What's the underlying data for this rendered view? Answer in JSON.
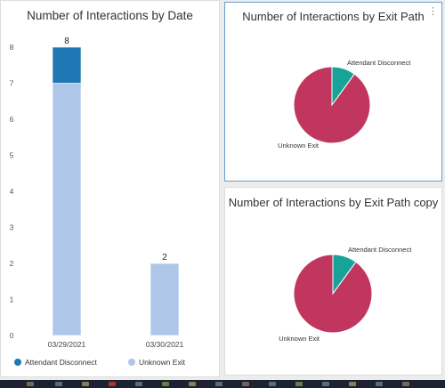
{
  "panels": {
    "bar": {
      "title": "Number of Interactions by Date"
    },
    "pie1": {
      "title": "Number of Interactions by Exit Path"
    },
    "pie2": {
      "title": "Number of Interactions by Exit Path copy"
    }
  },
  "icons": {
    "more": "more-options-icon"
  },
  "colors": {
    "attendant_bar": "#1f77b4",
    "unknown_bar": "#aec7e8",
    "attendant_pie": "#17a398",
    "unknown_pie": "#c0365f",
    "selected_border": "#6a9dd1",
    "taskbar": "#1d2233"
  },
  "chart_data": [
    {
      "type": "bar",
      "stacked": true,
      "title": "Number of Interactions by Date",
      "categories": [
        "03/29/2021",
        "03/30/2021"
      ],
      "series": [
        {
          "name": "Attendant Disconnect",
          "values": [
            1,
            0
          ],
          "color": "#1f77b4"
        },
        {
          "name": "Unknown Exit",
          "values": [
            7,
            2
          ],
          "color": "#aec7e8"
        }
      ],
      "totals": [
        "8",
        "2"
      ],
      "yticks": [
        "0",
        "1",
        "2",
        "3",
        "4",
        "5",
        "6",
        "7",
        "8"
      ],
      "ylim": [
        0,
        8
      ],
      "legend_position": "bottom",
      "grid": false
    },
    {
      "type": "pie",
      "title": "Number of Interactions by Exit Path",
      "labels": [
        "Attendant Disconnect",
        "Unknown Exit"
      ],
      "values": [
        1,
        9
      ],
      "colors": [
        "#17a398",
        "#c0365f"
      ]
    },
    {
      "type": "pie",
      "title": "Number of Interactions by Exit Path copy",
      "labels": [
        "Attendant Disconnect",
        "Unknown Exit"
      ],
      "values": [
        1,
        9
      ],
      "colors": [
        "#17a398",
        "#c0365f"
      ]
    }
  ]
}
